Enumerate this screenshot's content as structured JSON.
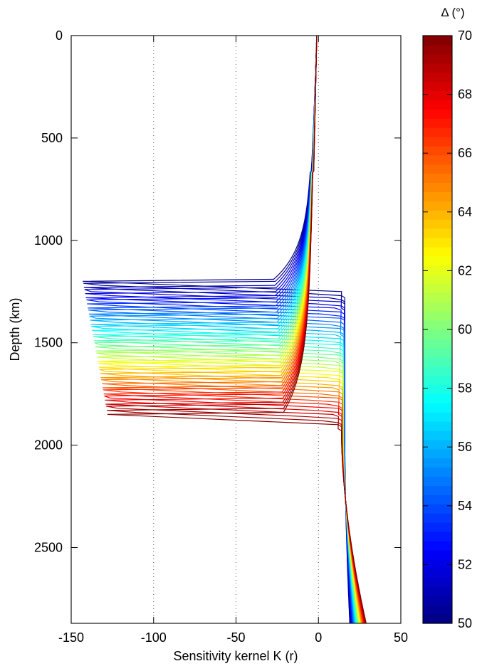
{
  "chart_data": {
    "type": "line",
    "title": "",
    "xlabel": "Sensitivity kernel K (r)",
    "ylabel": "Depth (km)",
    "xlim": [
      -150,
      50
    ],
    "ylim": [
      2870,
      0
    ],
    "y_reversed": true,
    "x_ticks": [
      -150,
      -100,
      -50,
      0,
      50
    ],
    "y_ticks": [
      0,
      500,
      1000,
      1500,
      2000,
      2500
    ],
    "x_tick_labels": [
      "-150",
      "-100",
      "-50",
      "0",
      "50"
    ],
    "y_tick_labels": [
      "0",
      "500",
      "1000",
      "1500",
      "2000",
      "2500"
    ],
    "grid": "vertical dotted lines at x = -100, -50, 0",
    "colorbar": {
      "label": "Δ (°)",
      "range": [
        50,
        70
      ],
      "ticks": [
        50,
        52,
        54,
        56,
        58,
        60,
        62,
        64,
        66,
        68,
        70
      ],
      "tick_labels": [
        "50",
        "52",
        "54",
        "56",
        "58",
        "60",
        "62",
        "64",
        "66",
        "68",
        "70"
      ],
      "colormap": "jet",
      "colormap_stops": [
        "#00008f",
        "#0000ff",
        "#00ffff",
        "#ffff00",
        "#ff0000",
        "#800000"
      ],
      "placement": "right"
    },
    "series_family": {
      "parameter": "epicentral distance Δ (°)",
      "delta_range": [
        50,
        70
      ],
      "count": 41,
      "kernel_depth_range_km": [
        1200,
        1850
      ],
      "kernel_minimum_range": [
        -143,
        -128
      ],
      "positive_max_range": [
        14,
        12
      ],
      "cmb_value_range": [
        19,
        29
      ],
      "depth_max_km": 2870
    }
  }
}
